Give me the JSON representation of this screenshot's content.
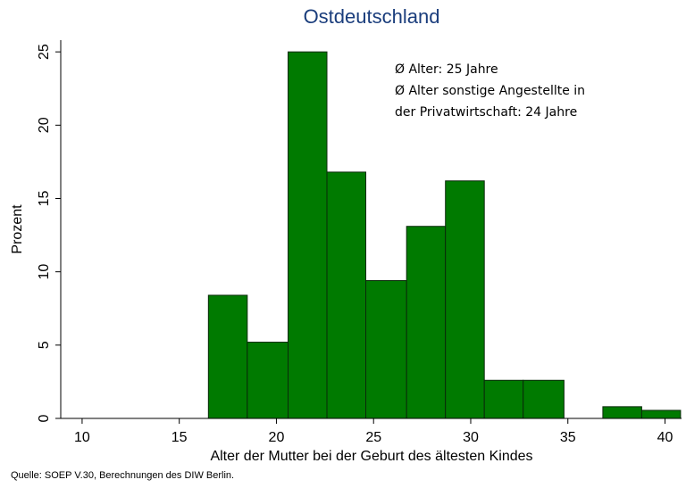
{
  "chart_data": {
    "type": "histogram",
    "title": "Ostdeutschland",
    "x_label": "Alter der Mutter bei der Geburt des ältesten Kindes",
    "y_label": "Prozent",
    "annotations": [
      "Ø Alter: 25 Jahre",
      "Ø Alter sonstige Angestellte in",
      "der Privatwirtschaft: 24 Jahre"
    ],
    "source": "Quelle: SOEP V.30, Berechnungen des DIW Berlin.",
    "bins": [
      16.5,
      18.5,
      20.6,
      22.6,
      24.6,
      26.7,
      28.7,
      30.7,
      32.7,
      34.8,
      36.8,
      38.8,
      40.8
    ],
    "values": [
      8.4,
      5.2,
      25.0,
      16.8,
      9.4,
      13.1,
      16.2,
      2.6,
      2.6,
      0,
      0.8,
      0.55
    ],
    "color": "#007a00",
    "xlim": [
      8.9,
      40.85
    ],
    "xticks": [
      10,
      15,
      20,
      25,
      30,
      35,
      40
    ],
    "ylim": [
      0,
      25.8
    ],
    "yticks": [
      0,
      5,
      10,
      15,
      20,
      25
    ]
  }
}
